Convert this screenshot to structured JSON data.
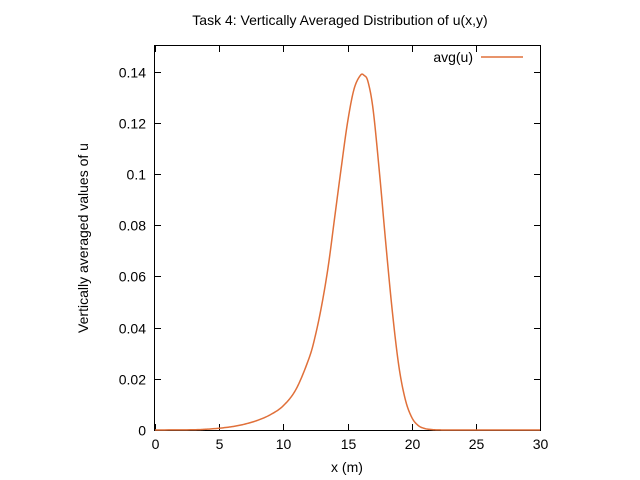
{
  "chart_data": {
    "type": "line",
    "title": "Task 4: Vertically Averaged Distribution of u(x,y)",
    "xlabel": "x (m)",
    "ylabel": "Vertically averaged values of u",
    "xlim": [
      0,
      30
    ],
    "ylim": [
      0,
      0.15
    ],
    "x_ticks": [
      0,
      5,
      10,
      15,
      20,
      25,
      30
    ],
    "y_ticks": [
      0,
      0.02,
      0.04,
      0.06,
      0.08,
      0.1,
      0.12,
      0.14
    ],
    "x_tick_labels": [
      "0",
      "5",
      "10",
      "15",
      "20",
      "25",
      "30"
    ],
    "y_tick_labels": [
      "0",
      "0.02",
      "0.04",
      "0.06",
      "0.08",
      "0.1",
      "0.12",
      "0.14"
    ],
    "grid": false,
    "legend_position": "top-right",
    "series": [
      {
        "name": "avg(u)",
        "color": "#e0703a",
        "x": [
          0,
          3,
          4,
          5,
          6,
          7,
          8,
          9,
          10,
          11,
          12,
          12.5,
          13,
          13.5,
          14,
          14.5,
          15,
          15.5,
          16,
          16.3,
          16.6,
          17,
          17.5,
          18,
          18.5,
          19,
          19.5,
          20,
          20.5,
          21,
          21.5,
          22,
          23,
          25,
          30
        ],
        "y": [
          0,
          0.0001,
          0.0003,
          0.0007,
          0.0013,
          0.0023,
          0.0038,
          0.006,
          0.0095,
          0.016,
          0.028,
          0.037,
          0.049,
          0.064,
          0.083,
          0.102,
          0.12,
          0.133,
          0.1385,
          0.1385,
          0.136,
          0.125,
          0.1,
          0.072,
          0.046,
          0.025,
          0.012,
          0.005,
          0.0018,
          0.0006,
          0.0002,
          5e-05,
          0,
          0,
          0
        ]
      }
    ]
  }
}
